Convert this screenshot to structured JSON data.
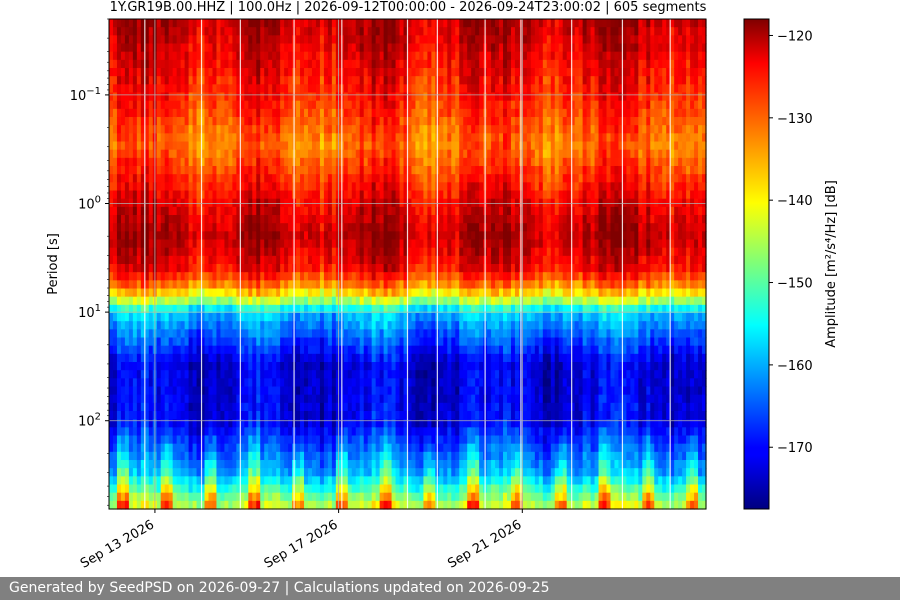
{
  "chart_data": {
    "type": "heatmap",
    "title": "1Y.GR19B.00.HHZ | 100.0Hz | 2026-09-12T00:00:00 - 2026-09-24T23:00:02 | 605 segments",
    "ylabel": "Period [s]",
    "xlabel": "",
    "x_start": "2026-09-12",
    "x_end": "2026-09-25",
    "y_scale": "log",
    "y_inverted": true,
    "ylim_period_s": [
      0.02,
      650
    ],
    "x_ticks": [
      "Sep 13 2026",
      "Sep 17 2026",
      "Sep 21 2026"
    ],
    "y_ticks": [
      {
        "base": "10",
        "exp": "−1",
        "value": 0.1
      },
      {
        "base": "10",
        "exp": "0",
        "value": 1
      },
      {
        "base": "10",
        "exp": "1",
        "value": 10
      },
      {
        "base": "10",
        "exp": "2",
        "value": 100
      }
    ],
    "grid": true,
    "colorbar": {
      "label": "Amplitude [m²/s⁴/Hz] [dB]",
      "colormap": "jet",
      "range_db": [
        -177.5,
        -118
      ],
      "ticks": [
        "−120",
        "−130",
        "−140",
        "−150",
        "−160",
        "−170"
      ],
      "tick_values": [
        -120,
        -130,
        -140,
        -150,
        -160,
        -170
      ]
    },
    "amplitude_profile_db": {
      "description": "approximate mean PSD amplitude by period band",
      "periods_s": [
        0.02,
        0.1,
        0.3,
        1,
        2,
        4,
        6,
        8,
        10,
        30,
        100,
        300,
        650
      ],
      "values_db": [
        -121,
        -127,
        -132,
        -124,
        -121,
        -125,
        -134,
        -146,
        -158,
        -172,
        -171,
        -160,
        -142
      ]
    }
  },
  "footer": {
    "text": "Generated by SeedPSD on 2026-09-27 | Calculations updated on 2026-09-25"
  }
}
